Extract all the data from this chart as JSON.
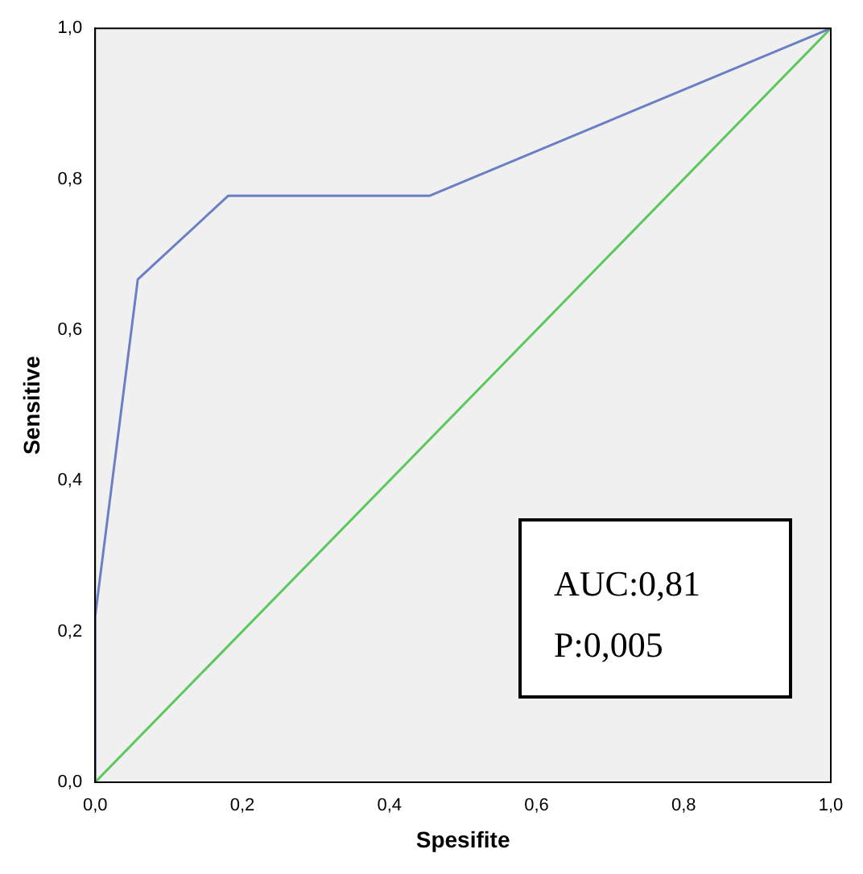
{
  "chart_data": {
    "type": "line",
    "xlabel": "Spesifite",
    "ylabel": "Sensitive",
    "xlim": [
      0,
      1
    ],
    "ylim": [
      0,
      1
    ],
    "xticks": [
      {
        "value": 0,
        "label": "0,0"
      },
      {
        "value": 0.2,
        "label": "0,2"
      },
      {
        "value": 0.4,
        "label": "0,4"
      },
      {
        "value": 0.6,
        "label": "0,6"
      },
      {
        "value": 0.8,
        "label": "0,8"
      },
      {
        "value": 1,
        "label": "1,0"
      }
    ],
    "yticks": [
      {
        "value": 0,
        "label": "0,0"
      },
      {
        "value": 0.2,
        "label": "0,2"
      },
      {
        "value": 0.4,
        "label": "0,4"
      },
      {
        "value": 0.6,
        "label": "0,6"
      },
      {
        "value": 0.8,
        "label": "0,8"
      },
      {
        "value": 1,
        "label": "1,0"
      }
    ],
    "series": [
      {
        "color": "#6b7fc4",
        "x": [
          0,
          0,
          0.058,
          0.181,
          0.455,
          1
        ],
        "values": [
          0,
          0.22,
          0.667,
          0.778,
          0.778,
          1
        ]
      },
      {
        "color": "#5cc85c",
        "x": [
          0,
          1
        ],
        "values": [
          0,
          1
        ]
      }
    ],
    "annotations": [
      "AUC:0,81",
      "P:0,005"
    ],
    "grid": false,
    "legend": false,
    "marker": "none",
    "line_style": "solid"
  }
}
